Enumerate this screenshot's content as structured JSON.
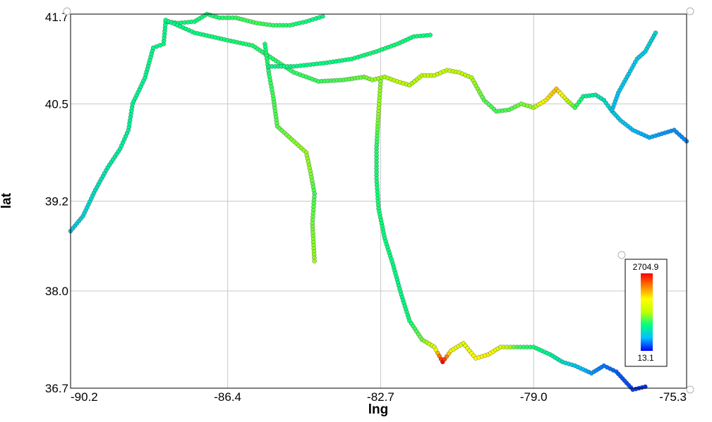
{
  "chart_data": {
    "type": "scatter",
    "title": "",
    "xlabel": "lng",
    "ylabel": "lat",
    "xlim": [
      -90.2,
      -75.3
    ],
    "ylim": [
      36.7,
      41.7
    ],
    "xticks": [
      -90.2,
      -86.4,
      -82.7,
      -79.0,
      -75.3
    ],
    "xtick_labels": [
      "-90.2",
      "-86.4",
      "-82.7",
      "-79.0",
      "-75.3"
    ],
    "yticks": [
      36.7,
      38.0,
      39.2,
      40.5,
      41.7
    ],
    "ytick_labels": [
      "36.7",
      "38.0",
      "39.2",
      "40.5",
      "41.7"
    ],
    "grid": true,
    "colorbar": {
      "min": 13.1,
      "max": 2704.9,
      "min_label": "13.1",
      "max_label": "2704.9",
      "placement": "bottom-right",
      "colors": [
        "#0000ff",
        "#00bfff",
        "#00ff80",
        "#c0ff00",
        "#ffff00",
        "#ff8000",
        "#ff0000"
      ]
    },
    "series": [
      {
        "values": [
          [
            -90.2,
            38.8
          ],
          [
            -89.9,
            39.0
          ],
          [
            -89.6,
            39.35
          ],
          [
            -89.3,
            39.65
          ],
          [
            -89.0,
            39.9
          ],
          [
            -88.8,
            40.15
          ],
          [
            -88.7,
            40.5
          ],
          [
            -88.4,
            40.85
          ],
          [
            -88.2,
            41.25
          ],
          [
            -87.95,
            41.3
          ],
          [
            -87.9,
            41.6
          ],
          [
            -87.6,
            41.58
          ],
          [
            -87.2,
            41.6
          ],
          [
            -86.9,
            41.7
          ],
          [
            -86.6,
            41.65
          ],
          [
            -86.2,
            41.65
          ],
          [
            -85.7,
            41.58
          ],
          [
            -85.3,
            41.55
          ],
          [
            -84.9,
            41.55
          ],
          [
            -84.5,
            41.6
          ],
          [
            -84.1,
            41.67
          ]
        ],
        "z": [
          200,
          250,
          300,
          350,
          400,
          400,
          420,
          430,
          440,
          460,
          470,
          480,
          490,
          500,
          520,
          560,
          600,
          560,
          520,
          480,
          450
        ]
      },
      {
        "values": [
          [
            -87.9,
            41.62
          ],
          [
            -87.2,
            41.45
          ],
          [
            -86.4,
            41.35
          ],
          [
            -85.8,
            41.28
          ],
          [
            -85.3,
            41.1
          ],
          [
            -84.8,
            40.92
          ],
          [
            -84.2,
            40.8
          ],
          [
            -83.6,
            40.82
          ],
          [
            -83.1,
            40.86
          ],
          [
            -82.9,
            40.82
          ],
          [
            -82.6,
            40.86
          ],
          [
            -82.3,
            40.8
          ],
          [
            -82.0,
            40.75
          ],
          [
            -81.7,
            40.88
          ],
          [
            -81.4,
            40.88
          ],
          [
            -81.1,
            40.95
          ],
          [
            -80.8,
            40.92
          ],
          [
            -80.5,
            40.85
          ],
          [
            -80.2,
            40.55
          ],
          [
            -79.9,
            40.4
          ],
          [
            -79.6,
            40.42
          ],
          [
            -79.3,
            40.5
          ],
          [
            -79.0,
            40.45
          ],
          [
            -78.7,
            40.55
          ],
          [
            -78.45,
            40.7
          ],
          [
            -78.2,
            40.55
          ],
          [
            -78.0,
            40.45
          ],
          [
            -77.8,
            40.6
          ],
          [
            -77.5,
            40.62
          ],
          [
            -77.3,
            40.55
          ],
          [
            -77.1,
            40.4
          ],
          [
            -76.9,
            40.28
          ],
          [
            -76.6,
            40.15
          ],
          [
            -76.2,
            40.05
          ],
          [
            -75.9,
            40.1
          ],
          [
            -75.6,
            40.15
          ],
          [
            -75.3,
            40.0
          ]
        ],
        "z": [
          450,
          470,
          500,
          520,
          540,
          560,
          580,
          620,
          700,
          760,
          820,
          900,
          860,
          880,
          920,
          950,
          900,
          850,
          640,
          600,
          620,
          700,
          800,
          1500,
          1700,
          1000,
          600,
          420,
          350,
          300,
          240,
          200,
          160,
          140,
          120,
          110,
          100
        ]
      },
      {
        "values": [
          [
            -77.1,
            40.42
          ],
          [
            -76.95,
            40.65
          ],
          [
            -76.7,
            40.9
          ],
          [
            -76.5,
            41.1
          ],
          [
            -76.3,
            41.2
          ],
          [
            -76.05,
            41.45
          ]
        ],
        "z": [
          180,
          190,
          200,
          210,
          220,
          250
        ]
      },
      {
        "values": [
          [
            -85.5,
            41.3
          ],
          [
            -85.4,
            40.9
          ],
          [
            -85.3,
            40.6
          ],
          [
            -85.2,
            40.2
          ],
          [
            -84.8,
            40.0
          ],
          [
            -84.5,
            39.85
          ],
          [
            -84.4,
            39.6
          ],
          [
            -84.3,
            39.3
          ],
          [
            -84.35,
            38.9
          ],
          [
            -84.3,
            38.4
          ]
        ],
        "z": [
          500,
          540,
          600,
          650,
          750,
          800,
          750,
          600,
          700,
          800
        ]
      },
      {
        "values": [
          [
            -85.4,
            41.0
          ],
          [
            -84.8,
            41.0
          ],
          [
            -84.0,
            41.05
          ],
          [
            -83.4,
            41.1
          ],
          [
            -82.8,
            41.2
          ],
          [
            -82.3,
            41.3
          ],
          [
            -81.9,
            41.4
          ],
          [
            -81.5,
            41.42
          ]
        ],
        "z": [
          450,
          460,
          470,
          480,
          490,
          500,
          480,
          470
        ]
      },
      {
        "values": [
          [
            -82.7,
            40.8
          ],
          [
            -82.75,
            40.4
          ],
          [
            -82.8,
            39.9
          ],
          [
            -82.8,
            39.5
          ],
          [
            -82.75,
            39.1
          ],
          [
            -82.6,
            38.7
          ],
          [
            -82.4,
            38.35
          ],
          [
            -82.2,
            37.95
          ],
          [
            -82.0,
            37.6
          ],
          [
            -81.7,
            37.35
          ],
          [
            -81.4,
            37.25
          ],
          [
            -81.2,
            37.05
          ],
          [
            -81.0,
            37.2
          ],
          [
            -80.7,
            37.3
          ],
          [
            -80.4,
            37.1
          ],
          [
            -80.1,
            37.15
          ],
          [
            -79.8,
            37.25
          ],
          [
            -79.4,
            37.25
          ],
          [
            -79.0,
            37.25
          ],
          [
            -78.6,
            37.15
          ],
          [
            -78.3,
            37.05
          ],
          [
            -78.0,
            37.0
          ],
          [
            -77.6,
            36.9
          ],
          [
            -77.3,
            37.0
          ],
          [
            -77.0,
            36.92
          ],
          [
            -76.6,
            36.68
          ],
          [
            -76.3,
            36.72
          ]
        ],
        "z": [
          750,
          800,
          520,
          500,
          500,
          480,
          470,
          450,
          500,
          700,
          1100,
          2704,
          1300,
          1200,
          1400,
          1500,
          1100,
          600,
          500,
          400,
          300,
          200,
          120,
          80,
          60,
          40,
          30
        ]
      }
    ]
  }
}
